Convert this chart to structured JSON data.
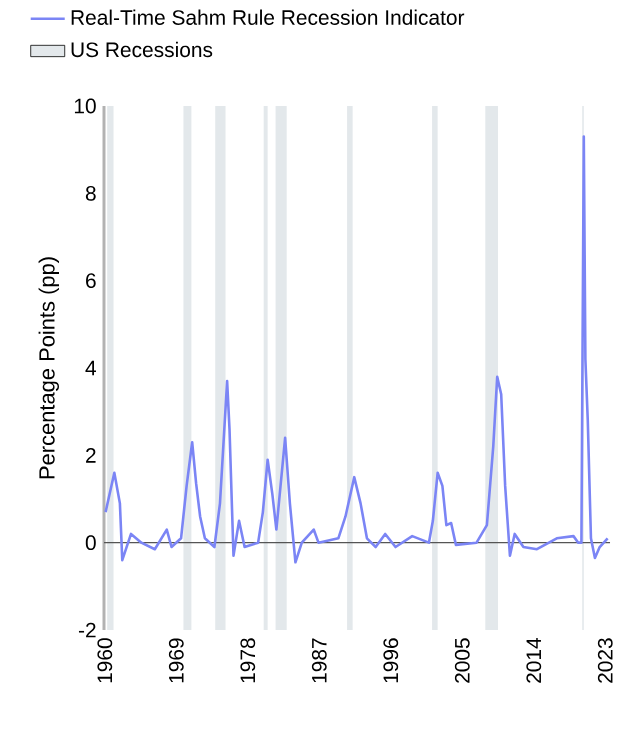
{
  "chart_data": {
    "type": "line",
    "ylabel": "Percentage Points (pp)",
    "x": [
      1960.1,
      1961.2,
      1961.9,
      1962.2,
      1963.3,
      1964.6,
      1966.3,
      1967.8,
      1968.4,
      1969.6,
      1970.3,
      1971.0,
      1971.5,
      1972.0,
      1972.6,
      1973.8,
      1974.5,
      1975.4,
      1975.7,
      1976.2,
      1976.9,
      1977.6,
      1979.3,
      1979.9,
      1980.5,
      1981.1,
      1981.6,
      1982.7,
      1983.3,
      1984.0,
      1984.8,
      1986.3,
      1986.9,
      1989.4,
      1990.3,
      1991.4,
      1992.2,
      1993.0,
      1994.1,
      1995.3,
      1996.6,
      1998.7,
      2000.8,
      2001.3,
      2001.9,
      2002.5,
      2003.0,
      2003.6,
      2004.2,
      2006.8,
      2008.1,
      2008.9,
      2009.4,
      2009.9,
      2010.4,
      2011.0,
      2011.6,
      2012.7,
      2014.4,
      2016.9,
      2019.0,
      2019.6,
      2020.0,
      2020.3,
      2020.5,
      2020.8,
      2021.2,
      2021.7,
      2022.3,
      2023.3
    ],
    "series": [
      {
        "name": "Real-Time Sahm Rule Recession Indicator",
        "color": "#7b85f5",
        "values": [
          0.7,
          1.6,
          0.9,
          -0.4,
          0.2,
          0.0,
          -0.15,
          0.3,
          -0.1,
          0.1,
          1.3,
          2.3,
          1.35,
          0.6,
          0.1,
          -0.1,
          0.9,
          3.7,
          2.6,
          -0.3,
          0.5,
          -0.1,
          0.0,
          0.7,
          1.9,
          1.1,
          0.3,
          2.4,
          0.9,
          -0.45,
          0.0,
          0.3,
          0.0,
          0.1,
          0.6,
          1.5,
          0.9,
          0.1,
          -0.1,
          0.2,
          -0.1,
          0.15,
          0.0,
          0.5,
          1.6,
          1.3,
          0.4,
          0.45,
          -0.05,
          0.0,
          0.4,
          2.2,
          3.8,
          3.4,
          1.3,
          -0.3,
          0.2,
          -0.1,
          -0.15,
          0.1,
          0.15,
          0.0,
          0.0,
          9.3,
          4.2,
          2.8,
          0.1,
          -0.35,
          -0.1,
          0.1
        ]
      }
    ],
    "xlim": [
      1959.9,
      2023.6
    ],
    "ylim": [
      -2,
      10
    ],
    "xticks": [
      1960,
      1969,
      1978,
      1987,
      1996,
      2005,
      2014,
      2023
    ],
    "yticks": [
      -2,
      0,
      2,
      4,
      6,
      8,
      10
    ],
    "legend": "top",
    "ref_lines": [
      {
        "axis": "y",
        "value": 0,
        "color": "#555555"
      }
    ],
    "bands": [
      {
        "axis": "x",
        "from": 1960.3,
        "to": 1961.1,
        "label": "US Recessions",
        "color": "#e3e8eb"
      },
      {
        "axis": "x",
        "from": 1969.9,
        "to": 1970.9,
        "color": "#e3e8eb"
      },
      {
        "axis": "x",
        "from": 1973.9,
        "to": 1975.2,
        "color": "#e3e8eb"
      },
      {
        "axis": "x",
        "from": 1980.0,
        "to": 1980.5,
        "color": "#e3e8eb"
      },
      {
        "axis": "x",
        "from": 1981.5,
        "to": 1982.9,
        "color": "#e3e8eb"
      },
      {
        "axis": "x",
        "from": 1990.5,
        "to": 1991.2,
        "color": "#e3e8eb"
      },
      {
        "axis": "x",
        "from": 2001.2,
        "to": 2001.9,
        "color": "#e3e8eb"
      },
      {
        "axis": "x",
        "from": 2007.9,
        "to": 2009.5,
        "color": "#e3e8eb"
      },
      {
        "axis": "x",
        "from": 2020.1,
        "to": 2020.3,
        "color": "#e3e8eb"
      }
    ]
  }
}
